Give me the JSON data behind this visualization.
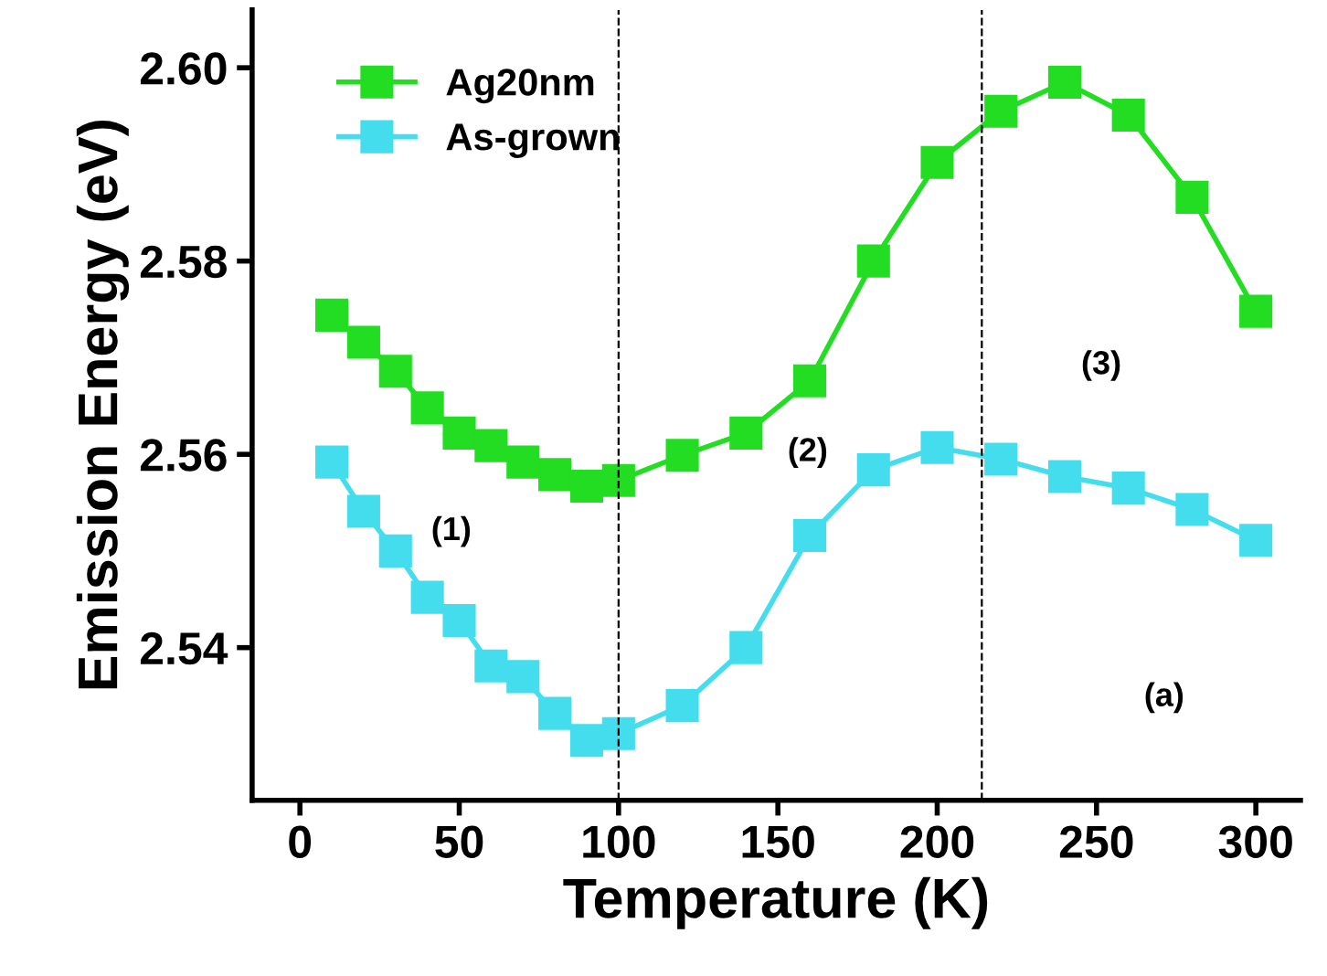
{
  "chart_data": {
    "type": "line",
    "xlabel": "Temperature (K)",
    "ylabel": "Emission Energy (eV)",
    "x": [
      10,
      20,
      30,
      40,
      50,
      60,
      70,
      80,
      90,
      100,
      120,
      140,
      160,
      180,
      200,
      220,
      240,
      260,
      280,
      300
    ],
    "series": [
      {
        "name": "Ag20nm",
        "color": "#22dd22",
        "values": [
          2.5744,
          2.5716,
          2.5686,
          2.5648,
          2.5622,
          2.5609,
          2.5592,
          2.5579,
          2.5567,
          2.5573,
          2.5599,
          2.5622,
          2.5676,
          2.58,
          2.5902,
          2.5955,
          2.5985,
          2.5951,
          2.5866,
          2.5748
        ]
      },
      {
        "name": "As-grown",
        "color": "#44ddee",
        "values": [
          2.5592,
          2.5541,
          2.55,
          2.5452,
          2.5428,
          2.5381,
          2.537,
          2.5332,
          2.5304,
          2.5311,
          2.534,
          2.54,
          2.5516,
          2.5584,
          2.5607,
          2.5595,
          2.5577,
          2.5565,
          2.5543,
          2.5511
        ]
      }
    ],
    "xlim": [
      -15,
      314
    ],
    "xticks": [
      0,
      50,
      100,
      150,
      200,
      250,
      300
    ],
    "ylim": [
      2.5242,
      2.606
    ],
    "yticks": [
      {
        "value": 2.54,
        "label": "2.54"
      },
      {
        "value": 2.56,
        "label": "2.56"
      },
      {
        "value": 2.58,
        "label": "2.58"
      },
      {
        "value": 2.6,
        "label": "2.60"
      }
    ],
    "ref_lines": [
      {
        "axis": "x",
        "value": 100,
        "color": "#000000",
        "line_style": "dashed"
      },
      {
        "axis": "x",
        "value": 214,
        "color": "#000000",
        "line_style": "dashed"
      }
    ],
    "annotations": [
      "(1)",
      "(2)",
      "(3)",
      "(a)"
    ],
    "marker": "square",
    "line_style": "solid",
    "grid": false,
    "legend": "top left"
  }
}
